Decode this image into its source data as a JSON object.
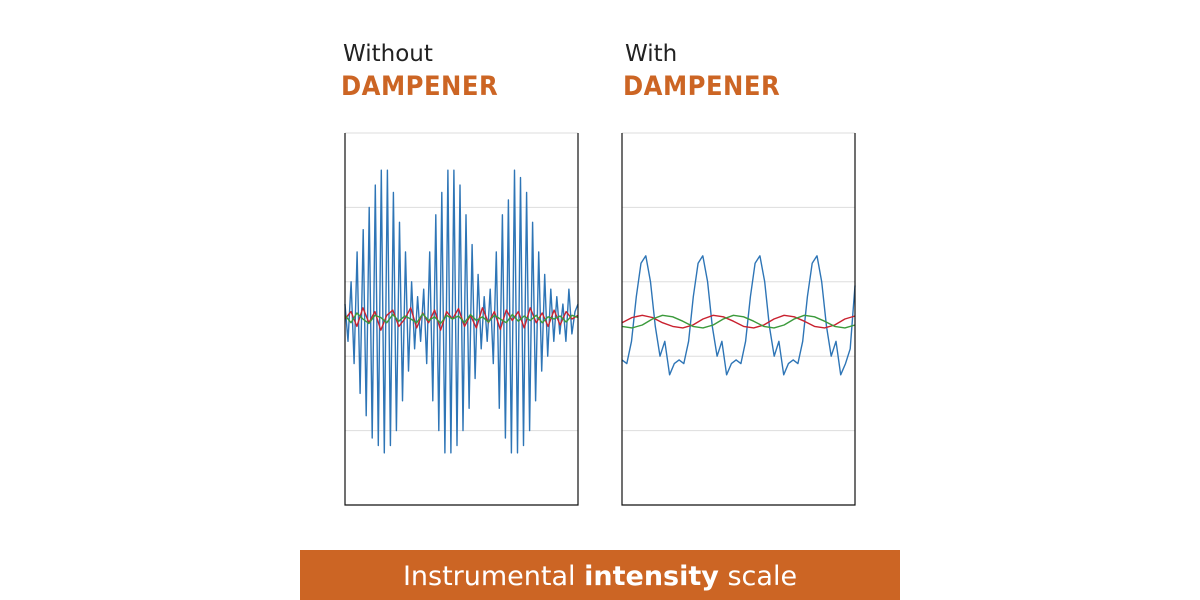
{
  "chart_data": [
    {
      "type": "line",
      "title": "Without",
      "subtitle": "DAMPENER",
      "ylim": [
        -2.5,
        2.5
      ],
      "ygrid": [
        -1.5,
        -0.5,
        0.5,
        1.5
      ],
      "series": [
        {
          "color": "#2e75b6",
          "values": [
            0.2,
            -0.3,
            0.5,
            -0.6,
            0.9,
            -1.0,
            1.2,
            -1.3,
            1.5,
            -1.6,
            1.8,
            -1.7,
            2.0,
            -1.8,
            2.0,
            -1.7,
            1.7,
            -1.5,
            1.3,
            -1.1,
            0.9,
            -0.7,
            0.5,
            -0.4,
            0.3,
            -0.3,
            0.4,
            -0.6,
            0.9,
            -1.1,
            1.4,
            -1.5,
            1.7,
            -1.8,
            2.0,
            -1.8,
            2.0,
            -1.7,
            1.8,
            -1.5,
            1.4,
            -1.2,
            1.0,
            -0.8,
            0.6,
            -0.4,
            0.3,
            -0.3,
            0.4,
            -0.6,
            0.9,
            -1.2,
            1.4,
            -1.6,
            1.6,
            -1.8,
            2.0,
            -1.8,
            1.9,
            -1.7,
            1.7,
            -1.5,
            1.3,
            -1.1,
            0.9,
            -0.7,
            0.6,
            -0.5,
            0.4,
            -0.3,
            0.3,
            -0.2,
            0.2,
            -0.3,
            0.4,
            -0.2,
            0.1,
            0.2
          ]
        },
        {
          "color": "#c9212f",
          "values": [
            0.0,
            0.1,
            -0.1,
            0.15,
            -0.05,
            0.1,
            -0.15,
            0.05,
            0.12,
            -0.1,
            0.0,
            0.15,
            -0.12,
            0.08,
            -0.05,
            0.12,
            -0.15,
            0.1,
            0.0,
            0.14,
            -0.1,
            0.05,
            -0.12,
            0.15,
            -0.05,
            0.1,
            -0.14,
            0.12,
            -0.02,
            0.1,
            -0.12,
            0.15,
            -0.05,
            0.08,
            -0.1,
            0.12,
            -0.08,
            0.1,
            0.0,
            0.05
          ]
        },
        {
          "color": "#3b9a3b",
          "values": [
            0.05,
            -0.05,
            0.08,
            0.0,
            -0.06,
            0.05,
            0.02,
            -0.05,
            0.06,
            -0.03,
            0.04,
            0.0,
            -0.05,
            0.07,
            -0.02,
            0.03,
            -0.06,
            0.05,
            0.0,
            0.04,
            -0.05,
            0.06,
            -0.02,
            0.03,
            -0.04,
            0.05,
            0.0,
            -0.05,
            0.06,
            -0.03,
            0.04,
            -0.02,
            0.05,
            -0.05,
            0.03,
            0.0,
            0.04,
            -0.04,
            0.05,
            0.02
          ]
        }
      ]
    },
    {
      "type": "line",
      "title": "With",
      "subtitle": "DAMPENER",
      "ylim": [
        -2.5,
        2.5
      ],
      "ygrid": [
        -1.5,
        -0.5,
        0.5,
        1.5
      ],
      "series": [
        {
          "color": "#2e75b6",
          "values": [
            -0.55,
            -0.6,
            -0.3,
            0.3,
            0.75,
            0.85,
            0.5,
            -0.1,
            -0.5,
            -0.3,
            -0.75,
            -0.6,
            -0.55,
            -0.6,
            -0.3,
            0.3,
            0.75,
            0.85,
            0.5,
            -0.1,
            -0.5,
            -0.3,
            -0.75,
            -0.6,
            -0.55,
            -0.6,
            -0.3,
            0.3,
            0.75,
            0.85,
            0.5,
            -0.1,
            -0.5,
            -0.3,
            -0.75,
            -0.6,
            -0.55,
            -0.6,
            -0.3,
            0.3,
            0.75,
            0.85,
            0.5,
            -0.1,
            -0.5,
            -0.3,
            -0.75,
            -0.6,
            -0.4,
            0.45
          ]
        },
        {
          "color": "#c9212f",
          "values": [
            -0.05,
            0.02,
            0.05,
            0.02,
            -0.05,
            -0.1,
            -0.12,
            -0.08,
            0.0,
            0.05,
            0.03,
            -0.03,
            -0.1,
            -0.12,
            -0.08,
            0.0,
            0.05,
            0.03,
            -0.03,
            -0.1,
            -0.12,
            -0.08,
            0.0,
            0.04
          ]
        },
        {
          "color": "#3b9a3b",
          "values": [
            -0.1,
            -0.12,
            -0.08,
            0.0,
            0.05,
            0.03,
            -0.03,
            -0.1,
            -0.12,
            -0.08,
            0.0,
            0.05,
            0.03,
            -0.03,
            -0.1,
            -0.12,
            -0.08,
            0.0,
            0.05,
            0.03,
            -0.03,
            -0.1,
            -0.12,
            -0.08
          ]
        }
      ]
    }
  ],
  "banner": {
    "parts": [
      "Instrumental",
      "intensity",
      "scale"
    ]
  }
}
